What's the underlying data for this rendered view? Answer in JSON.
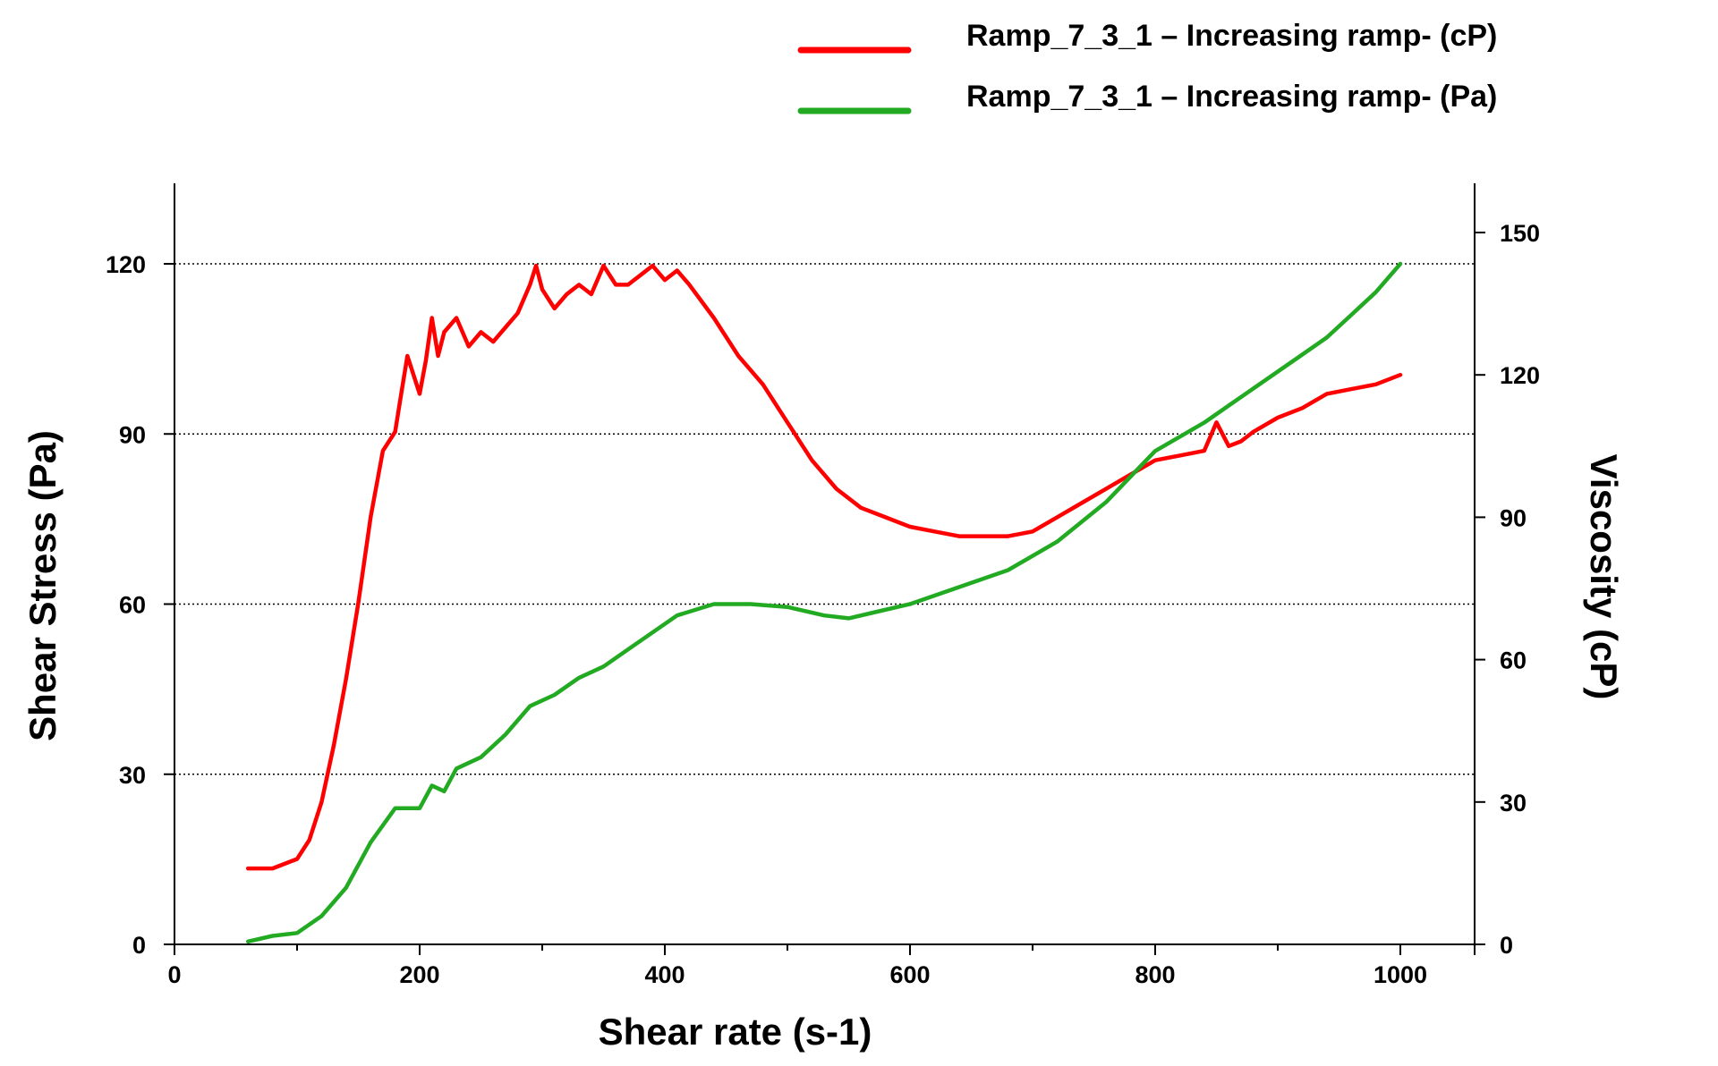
{
  "chart_data": {
    "type": "line",
    "title": "",
    "xlabel": "Shear rate (s-1)",
    "ylabel": "Shear Stress (Pa)",
    "y2label": "Viscosity (cP)",
    "xlim": [
      0,
      1050
    ],
    "ylim": [
      0,
      133
    ],
    "y2lim": [
      0,
      160
    ],
    "xticks": [
      0,
      200,
      400,
      600,
      800,
      1000
    ],
    "xtick_labels": [
      "0",
      "200",
      "400",
      "600",
      "800",
      "1000"
    ],
    "yticks": [
      0,
      30,
      60,
      90,
      120
    ],
    "ytick_labels": [
      "0",
      "30",
      "60",
      "90",
      "120"
    ],
    "y2ticks": [
      0,
      30,
      60,
      90,
      120,
      150
    ],
    "y2tick_labels": [
      "0",
      "30",
      "60",
      "90",
      "120",
      "150"
    ],
    "grid": "horizontal dotted at 30, 60, 90, 120 (Pa)",
    "legend_position": "top-right",
    "series": [
      {
        "name": "Ramp_7_3_1 – Increasing ramp- (cP)",
        "axis": "right",
        "color": "#ff0000",
        "x": [
          60,
          80,
          100,
          110,
          120,
          130,
          140,
          150,
          160,
          170,
          180,
          185,
          190,
          200,
          205,
          210,
          215,
          220,
          230,
          240,
          250,
          260,
          270,
          280,
          290,
          295,
          300,
          310,
          320,
          330,
          340,
          350,
          360,
          370,
          380,
          390,
          400,
          410,
          420,
          440,
          460,
          480,
          500,
          520,
          540,
          560,
          580,
          600,
          620,
          640,
          660,
          680,
          700,
          720,
          740,
          760,
          780,
          800,
          820,
          840,
          850,
          860,
          870,
          880,
          900,
          920,
          940,
          960,
          980,
          1000
        ],
        "y": [
          16,
          16,
          18,
          22,
          30,
          42,
          56,
          72,
          90,
          104,
          108,
          116,
          124,
          116,
          123,
          132,
          124,
          129,
          132,
          126,
          129,
          127,
          130,
          133,
          139,
          143,
          138,
          134,
          137,
          139,
          137,
          143,
          139,
          139,
          141,
          143,
          140,
          142,
          139,
          132,
          124,
          118,
          110,
          102,
          96,
          92,
          90,
          88,
          87,
          86,
          86,
          86,
          87,
          90,
          93,
          96,
          99,
          102,
          103,
          104,
          110,
          105,
          106,
          108,
          111,
          113,
          116,
          117,
          118,
          120
        ]
      },
      {
        "name": "Ramp_7_3_1 – Increasing ramp- (Pa)",
        "axis": "left",
        "color": "#22aa22",
        "x": [
          60,
          80,
          100,
          120,
          140,
          160,
          180,
          200,
          210,
          220,
          230,
          250,
          270,
          290,
          310,
          330,
          350,
          370,
          390,
          410,
          440,
          470,
          500,
          530,
          550,
          570,
          600,
          640,
          680,
          720,
          760,
          800,
          840,
          860,
          880,
          900,
          920,
          940,
          960,
          980,
          1000
        ],
        "y": [
          0.5,
          1.5,
          2,
          5,
          10,
          18,
          24,
          24,
          28,
          27,
          31,
          33,
          37,
          42,
          44,
          47,
          49,
          52,
          55,
          58,
          60,
          60,
          59.5,
          58,
          57.5,
          58.5,
          60,
          63,
          66,
          71,
          78,
          87,
          92,
          95,
          98,
          101,
          104,
          107,
          111,
          115,
          120
        ]
      }
    ]
  }
}
